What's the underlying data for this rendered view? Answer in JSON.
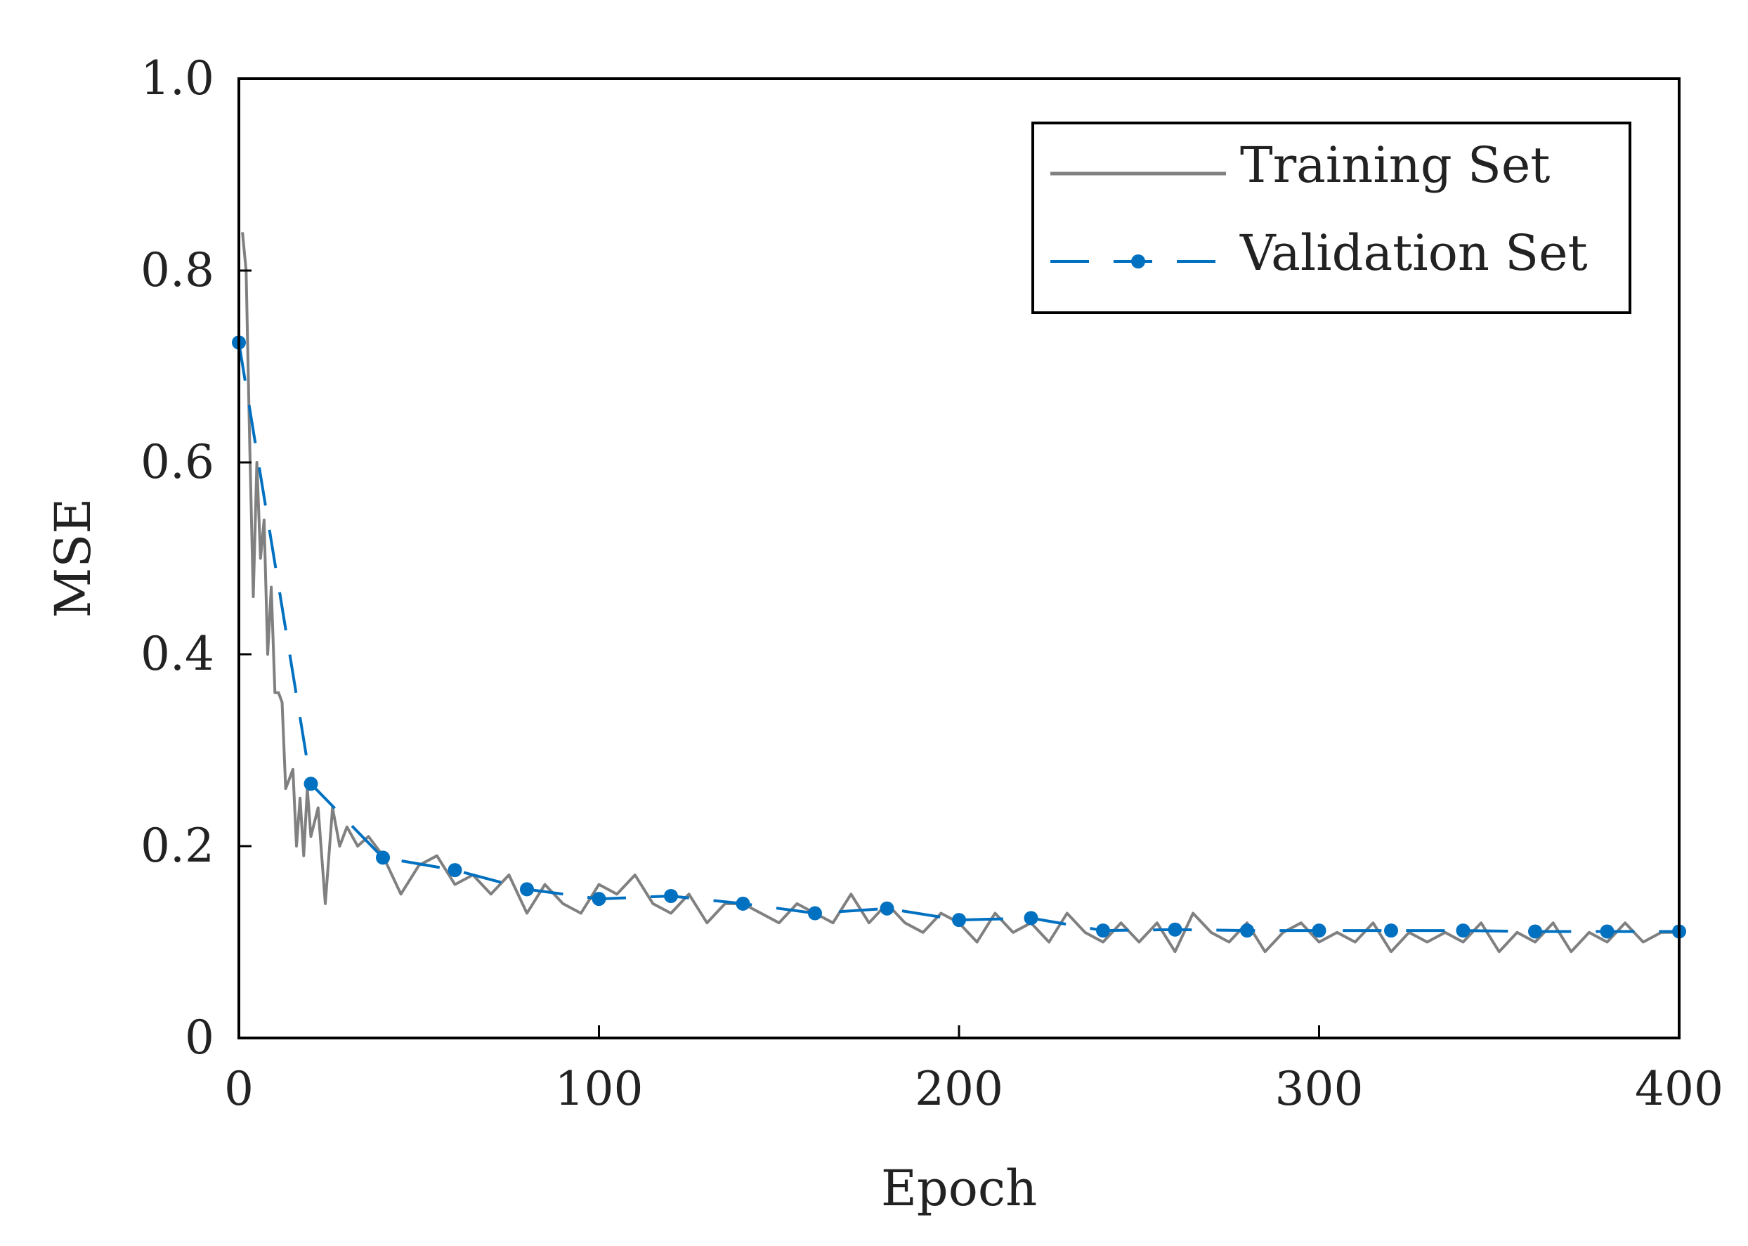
{
  "chart_data": {
    "type": "line",
    "title": "",
    "xlabel": "Epoch",
    "ylabel": "MSE",
    "xlim": [
      0,
      400
    ],
    "ylim": [
      0,
      1.0
    ],
    "xticks": [
      0,
      100,
      200,
      300,
      400
    ],
    "xtick_labels": [
      "0",
      "100",
      "200",
      "300",
      "400"
    ],
    "yticks": [
      0,
      0.2,
      0.4,
      0.6,
      0.8,
      1.0
    ],
    "ytick_labels": [
      "0",
      "0.2",
      "0.4",
      "0.6",
      "0.8",
      "1.0"
    ],
    "grid": false,
    "legend_position": "top-right",
    "series": [
      {
        "name": "Training Set",
        "color": "#808080",
        "style": "solid",
        "x": [
          1,
          2,
          3,
          4,
          5,
          6,
          7,
          8,
          9,
          10,
          11,
          12,
          13,
          14,
          15,
          16,
          17,
          18,
          19,
          20,
          22,
          24,
          26,
          28,
          30,
          33,
          36,
          40,
          45,
          50,
          55,
          60,
          65,
          70,
          75,
          80,
          85,
          90,
          95,
          100,
          105,
          110,
          115,
          120,
          125,
          130,
          135,
          140,
          145,
          150,
          155,
          160,
          165,
          170,
          175,
          180,
          185,
          190,
          195,
          200,
          205,
          210,
          215,
          220,
          225,
          230,
          235,
          240,
          245,
          250,
          255,
          260,
          265,
          270,
          275,
          280,
          285,
          290,
          295,
          300,
          305,
          310,
          315,
          320,
          325,
          330,
          335,
          340,
          345,
          350,
          355,
          360,
          365,
          370,
          375,
          380,
          385,
          390,
          395,
          400
        ],
        "values": [
          0.84,
          0.8,
          0.62,
          0.46,
          0.6,
          0.5,
          0.54,
          0.4,
          0.47,
          0.36,
          0.36,
          0.35,
          0.26,
          0.27,
          0.28,
          0.2,
          0.25,
          0.19,
          0.26,
          0.21,
          0.24,
          0.14,
          0.24,
          0.2,
          0.22,
          0.2,
          0.21,
          0.19,
          0.15,
          0.18,
          0.19,
          0.16,
          0.17,
          0.15,
          0.17,
          0.13,
          0.16,
          0.14,
          0.13,
          0.16,
          0.15,
          0.17,
          0.14,
          0.13,
          0.15,
          0.12,
          0.14,
          0.14,
          0.13,
          0.12,
          0.14,
          0.13,
          0.12,
          0.15,
          0.12,
          0.14,
          0.12,
          0.11,
          0.13,
          0.12,
          0.1,
          0.13,
          0.11,
          0.12,
          0.1,
          0.13,
          0.11,
          0.1,
          0.12,
          0.1,
          0.12,
          0.09,
          0.13,
          0.11,
          0.1,
          0.12,
          0.09,
          0.11,
          0.12,
          0.1,
          0.11,
          0.1,
          0.12,
          0.09,
          0.11,
          0.1,
          0.11,
          0.1,
          0.12,
          0.09,
          0.11,
          0.1,
          0.12,
          0.09,
          0.11,
          0.1,
          0.12,
          0.1,
          0.11,
          0.11
        ]
      },
      {
        "name": "Validation Set",
        "color": "#0070C0",
        "style": "dashed",
        "marker": "circle",
        "x": [
          0,
          20,
          40,
          60,
          80,
          100,
          120,
          140,
          160,
          180,
          200,
          220,
          240,
          260,
          280,
          300,
          320,
          340,
          360,
          380,
          400
        ],
        "values": [
          0.725,
          0.265,
          0.188,
          0.175,
          0.155,
          0.145,
          0.148,
          0.14,
          0.13,
          0.135,
          0.123,
          0.125,
          0.112,
          0.113,
          0.112,
          0.112,
          0.112,
          0.112,
          0.111,
          0.111,
          0.111
        ]
      }
    ]
  }
}
